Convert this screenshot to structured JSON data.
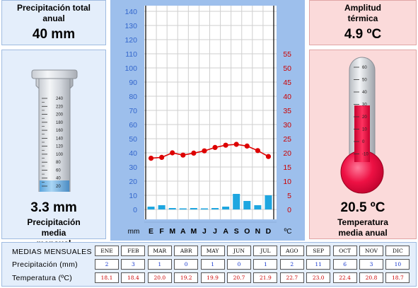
{
  "total_precip": {
    "label": "Precipitación total anual",
    "value": "40 mm"
  },
  "monthly_precip": {
    "value": "3.3 mm",
    "label": "Precipitación media mensual"
  },
  "amplitude": {
    "label": "Amplitud térmica",
    "value": "4.9 ºC"
  },
  "mean_temp": {
    "value": "20.5 ºC",
    "label": "Temperatura media anual"
  },
  "cylinder_ticks": [
    "240",
    "220",
    "200",
    "180",
    "160",
    "140",
    "120",
    "100",
    "80",
    "60",
    "40",
    "20"
  ],
  "thermo_ticks": [
    "60",
    "50",
    "40",
    "30",
    "20",
    "10",
    "0",
    "-10"
  ],
  "table": {
    "header_label": "MEDIAS MENSUALES",
    "precip_label": "Precipitación (mm)",
    "temp_label": "Temperatura (ºC)",
    "months": [
      "ENE",
      "FEB",
      "MAR",
      "ABR",
      "MAY",
      "JUN",
      "JUL",
      "AGO",
      "SEP",
      "OCT",
      "NOV",
      "DIC"
    ],
    "precip": [
      "2",
      "3",
      "1",
      "0",
      "1",
      "0",
      "1",
      "2",
      "11",
      "6",
      "3",
      "10"
    ],
    "temp": [
      "18.1",
      "18.4",
      "20.0",
      "19.2",
      "19.9",
      "20.7",
      "21.9",
      "22.7",
      "23.0",
      "22.4",
      "20.8",
      "18.7"
    ]
  },
  "colors": {
    "bar": "#1ea6e0",
    "line": "#dd0000",
    "left_axis": "#3366cc",
    "right_axis": "#cc0000"
  },
  "chart_data": {
    "type": "bar+line",
    "categories": [
      "E",
      "F",
      "M",
      "A",
      "M",
      "J",
      "J",
      "A",
      "S",
      "O",
      "N",
      "D"
    ],
    "series": [
      {
        "type": "bar",
        "axis": "left",
        "values": [
          2,
          3,
          1,
          0,
          1,
          0,
          1,
          2,
          11,
          6,
          3,
          10
        ]
      },
      {
        "type": "line",
        "axis": "right",
        "values": [
          18.1,
          18.4,
          20.0,
          19.2,
          19.9,
          20.7,
          21.9,
          22.7,
          23.0,
          22.4,
          20.8,
          18.7
        ]
      }
    ],
    "left_axis": {
      "label": "mm",
      "ticks": [
        "0",
        "10",
        "20",
        "30",
        "40",
        "50",
        "60",
        "70",
        "80",
        "90",
        "100",
        "110",
        "120",
        "130",
        "140"
      ],
      "range": [
        0,
        140
      ]
    },
    "right_axis": {
      "label": "ºC",
      "ticks": [
        "0",
        "5",
        "10",
        "15",
        "20",
        "25",
        "30",
        "35",
        "40",
        "45",
        "50",
        "55"
      ],
      "range": [
        0,
        70
      ]
    },
    "grid": true
  }
}
